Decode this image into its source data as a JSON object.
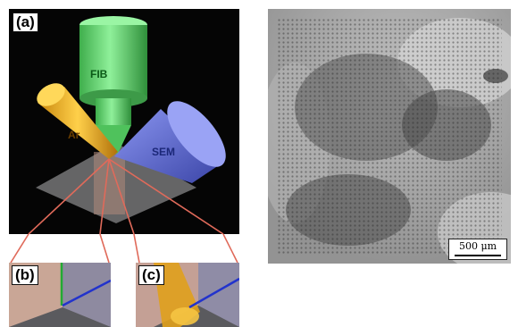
{
  "figure": {
    "panel_a": {
      "label": "(a)",
      "columns": {
        "fib": "FIB",
        "ar": "Ar",
        "sem": "SEM"
      }
    },
    "panel_b": {
      "label": "(b)"
    },
    "panel_c": {
      "label": "(c)"
    },
    "micrograph": {
      "scale_bar": "500 μm"
    }
  },
  "colors": {
    "fib_green": "#5fcf6a",
    "ar_orange": "#e8a81a",
    "sem_blue": "#6c78d8",
    "connector_red": "#e06a5a"
  }
}
